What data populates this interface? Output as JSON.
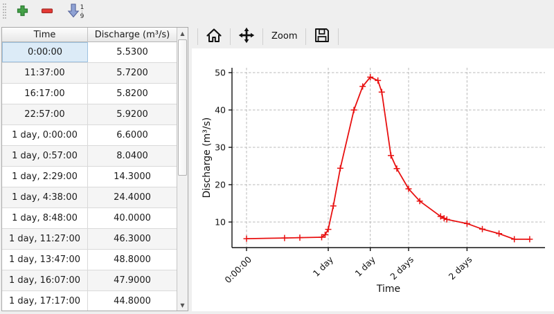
{
  "toolbar": {
    "add_tooltip": "add",
    "remove_tooltip": "remove",
    "sort_digits": [
      "1",
      "9"
    ]
  },
  "table": {
    "columns": [
      "Time",
      "Discharge (m³/s)"
    ],
    "selected": {
      "row": 0,
      "col": 0
    },
    "rows": [
      {
        "time": "0:00:00",
        "discharge": "5.5300"
      },
      {
        "time": "11:37:00",
        "discharge": "5.7200"
      },
      {
        "time": "16:17:00",
        "discharge": "5.8200"
      },
      {
        "time": "22:57:00",
        "discharge": "5.9200"
      },
      {
        "time": "1 day, 0:00:00",
        "discharge": "6.6000"
      },
      {
        "time": "1 day, 0:57:00",
        "discharge": "8.0400"
      },
      {
        "time": "1 day, 2:29:00",
        "discharge": "14.3000"
      },
      {
        "time": "1 day, 4:38:00",
        "discharge": "24.4000"
      },
      {
        "time": "1 day, 8:48:00",
        "discharge": "40.0000"
      },
      {
        "time": "1 day, 11:27:00",
        "discharge": "46.3000"
      },
      {
        "time": "1 day, 13:47:00",
        "discharge": "48.8000"
      },
      {
        "time": "1 day, 16:07:00",
        "discharge": "47.9000"
      },
      {
        "time": "1 day, 17:17:00",
        "discharge": "44.8000"
      }
    ]
  },
  "chart_toolbar": {
    "zoom_label": "Zoom"
  },
  "chart_data": {
    "type": "line",
    "title": "",
    "xlabel": "Time",
    "ylabel": "Discharge (m³/s)",
    "grid": true,
    "xlim_days": [
      -0.185,
      3.797
    ],
    "ylim": [
      3.15,
      51.3
    ],
    "x_ticks": [
      {
        "t": 0.0,
        "label": "0:00:00"
      },
      {
        "t": 1.0396,
        "label": "1 day"
      },
      {
        "t": 1.5743,
        "label": "1 day"
      },
      {
        "t": 2.0618,
        "label": "2 days"
      },
      {
        "t": 2.8049,
        "label": "2 days"
      }
    ],
    "y_ticks": [
      {
        "v": 10,
        "label": "10"
      },
      {
        "v": 20,
        "label": "20"
      },
      {
        "v": 30,
        "label": "30"
      },
      {
        "v": 40,
        "label": "40"
      },
      {
        "v": 50,
        "label": "50"
      }
    ],
    "series": [
      {
        "name": "Discharge",
        "color": "#e81010",
        "marker": "plus",
        "t_days": [
          0,
          0.48403,
          0.67847,
          0.95625,
          1.0,
          1.03958,
          1.10347,
          1.19306,
          1.36667,
          1.47708,
          1.57431,
          1.67153,
          1.72014,
          1.837,
          1.912,
          2.0618,
          2.204,
          2.469,
          2.513,
          2.549,
          2.8049,
          3.0,
          3.212,
          3.407,
          3.602
        ],
        "values": [
          5.53,
          5.72,
          5.82,
          5.92,
          6.6,
          8.04,
          14.3,
          24.4,
          40.0,
          46.3,
          48.8,
          47.9,
          44.8,
          27.8,
          24.3,
          18.9,
          15.6,
          11.5,
          11.0,
          10.7,
          9.6,
          8.1,
          6.9,
          5.4,
          5.4
        ]
      }
    ]
  }
}
